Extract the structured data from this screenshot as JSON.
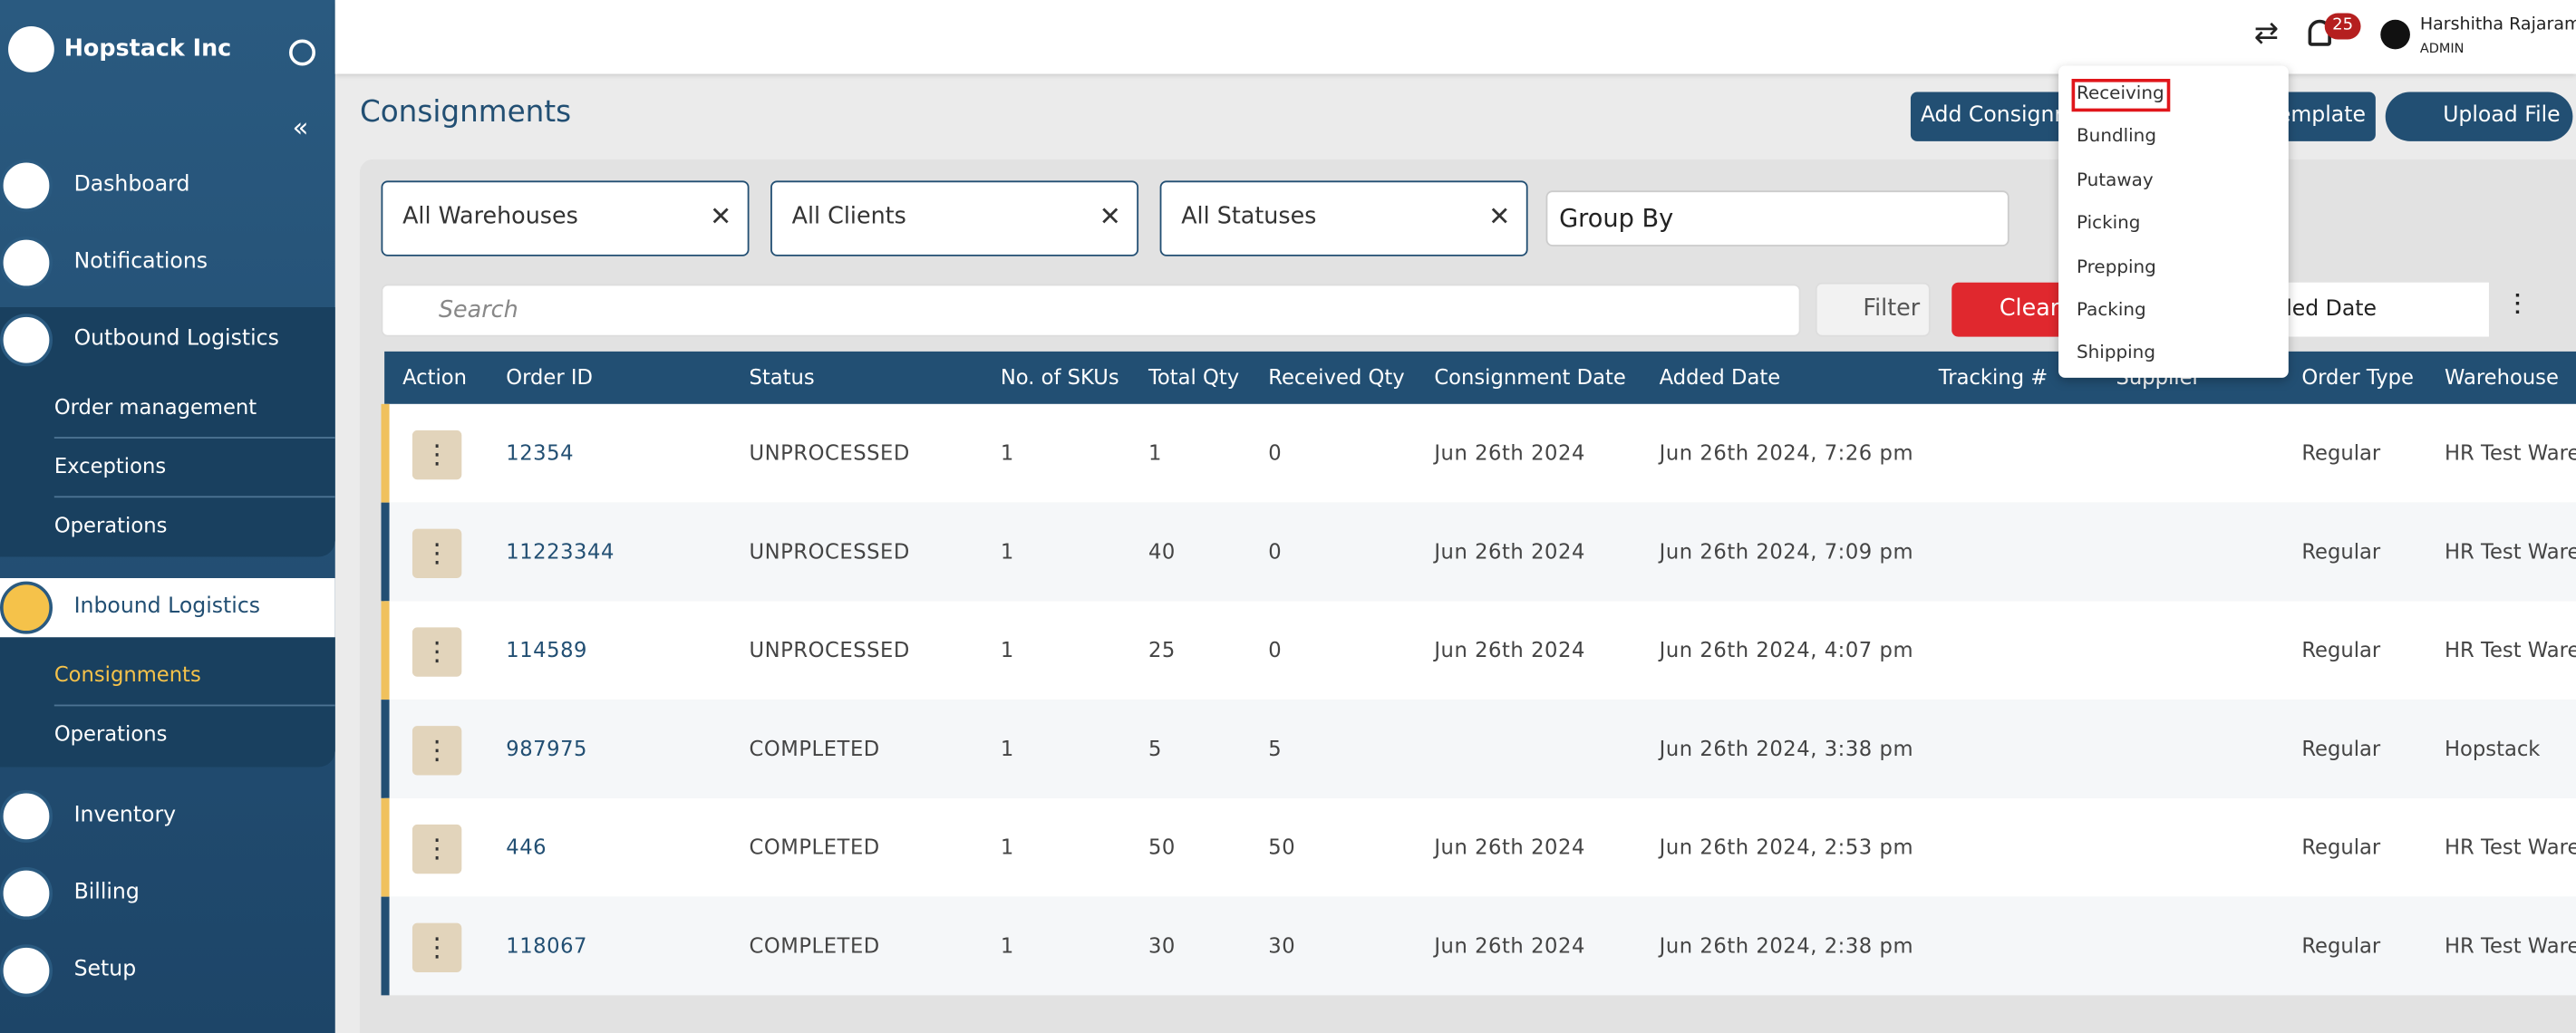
{
  "sidebar": {
    "brand": "Hopstack Inc",
    "items": [
      {
        "label": "Dashboard"
      },
      {
        "label": "Notifications"
      },
      {
        "label": "Outbound Logistics",
        "children": [
          "Order management",
          "Exceptions",
          "Operations"
        ]
      },
      {
        "label": "Inbound Logistics",
        "children": [
          "Consignments",
          "Operations"
        ]
      },
      {
        "label": "Inventory"
      },
      {
        "label": "Billing"
      },
      {
        "label": "Setup"
      }
    ]
  },
  "header": {
    "notification_count": 25,
    "user_name": "Harshitha Rajaram",
    "user_role": "ADMIN"
  },
  "page": {
    "title": "Consignments",
    "buttons": [
      "Add Consignment",
      "Download Template",
      "Upload File"
    ]
  },
  "filters": {
    "selects": [
      "All Warehouses",
      "All Clients",
      "All Statuses"
    ],
    "group_by": "Group By",
    "search_placeholder": "Search",
    "filter_button": "Filter",
    "clear_button": "Clear",
    "sort": "Added Date"
  },
  "table": {
    "columns": [
      "Action",
      "Order ID",
      "Status",
      "No. of SKUs",
      "Total Qty",
      "Received Qty",
      "Consignment Date",
      "Added Date",
      "Tracking #",
      "Supplier",
      "Order Type",
      "Warehouse"
    ],
    "rows": [
      {
        "order_id": "12354",
        "status": "UNPROCESSED",
        "skus": 1,
        "total_qty": 1,
        "received_qty": 0,
        "consignment_date": "Jun 26th 2024",
        "added_date": "Jun 26th 2024, 7:26 pm",
        "order_type": "Regular",
        "warehouse": "HR Test Warehouse"
      },
      {
        "order_id": "11223344",
        "status": "UNPROCESSED",
        "skus": 1,
        "total_qty": 40,
        "received_qty": 0,
        "consignment_date": "Jun 26th 2024",
        "added_date": "Jun 26th 2024, 7:09 pm",
        "order_type": "Regular",
        "warehouse": "HR Test Warehouse"
      },
      {
        "order_id": "114589",
        "status": "UNPROCESSED",
        "skus": 1,
        "total_qty": 25,
        "received_qty": 0,
        "consignment_date": "Jun 26th 2024",
        "added_date": "Jun 26th 2024, 4:07 pm",
        "order_type": "Regular",
        "warehouse": "HR Test Warehouse"
      },
      {
        "order_id": "987975",
        "status": "COMPLETED",
        "skus": 1,
        "total_qty": 5,
        "received_qty": 5,
        "consignment_date": null,
        "added_date": "Jun 26th 2024, 3:38 pm",
        "order_type": "Regular",
        "warehouse": "Hopstack"
      },
      {
        "order_id": "446",
        "status": "COMPLETED",
        "skus": 1,
        "total_qty": 50,
        "received_qty": 50,
        "consignment_date": "Jun 26th 2024",
        "added_date": "Jun 26th 2024, 2:53 pm",
        "order_type": "Regular",
        "warehouse": "HR Test Warehouse"
      },
      {
        "order_id": "118067",
        "status": "COMPLETED",
        "skus": 1,
        "total_qty": 30,
        "received_qty": 30,
        "consignment_date": "Jun 26th 2024",
        "added_date": "Jun 26th 2024, 2:38 pm",
        "order_type": "Regular",
        "warehouse": "HR Test Warehouse"
      }
    ]
  },
  "dropdown": {
    "items": [
      "Receiving",
      "Bundling",
      "Putaway",
      "Picking",
      "Prepping",
      "Packing",
      "Shipping"
    ]
  }
}
